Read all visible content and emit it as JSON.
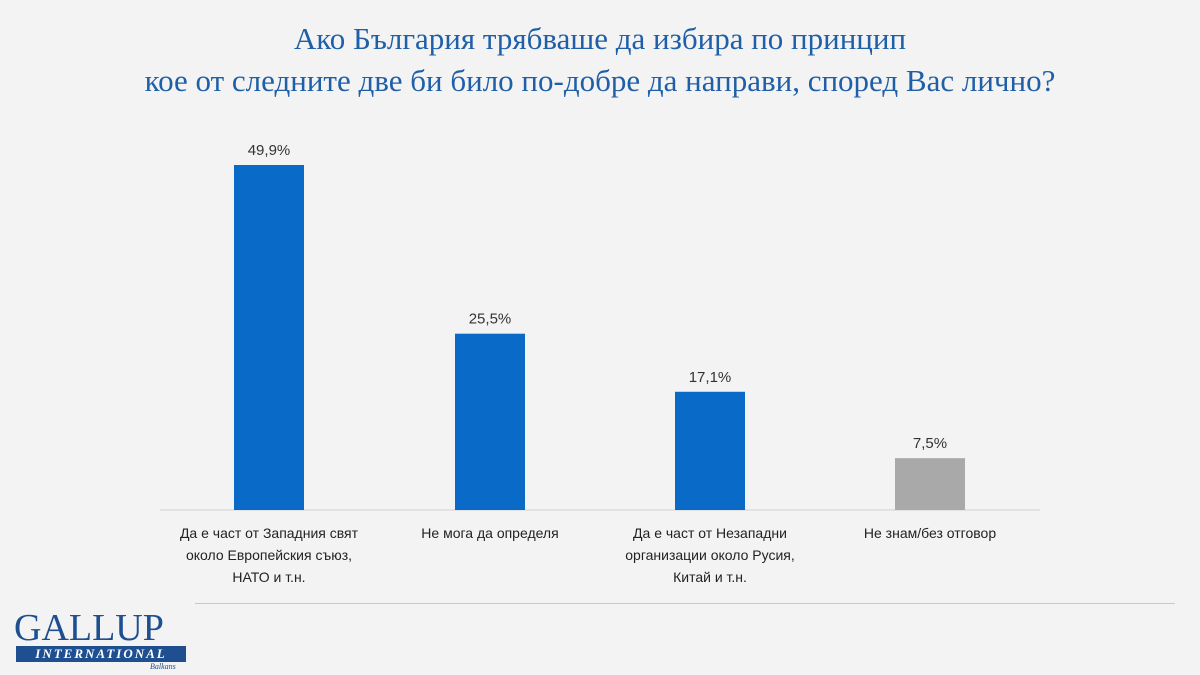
{
  "title_lines": [
    "Ако България трябваше да избира по принцип",
    "кое от следните две би било по-добре да направи, според Вас лично?"
  ],
  "chart_data": {
    "type": "bar",
    "title": "Ако България трябваше да избира по принцип кое от следните две би било по-добре да направи, според Вас лично?",
    "categories": [
      [
        "Да е част от Западния свят",
        "около Европейския съюз,",
        "НАТО и т.н."
      ],
      [
        "Не мога да определя"
      ],
      [
        "Да е част от Незападни",
        "организации около Русия,",
        "Китай и т.н."
      ],
      [
        "Не знам/без отговор"
      ]
    ],
    "values": [
      49.9,
      25.5,
      17.1,
      7.5
    ],
    "value_labels": [
      "49,9%",
      "25,5%",
      "17,1%",
      "7,5%"
    ],
    "colors": [
      "#0a6ac7",
      "#0a6ac7",
      "#0a6ac7",
      "#a9a9a9"
    ],
    "ylim": [
      0,
      52
    ],
    "grid": false,
    "xlabel": "",
    "ylabel": ""
  },
  "logo": {
    "word": "GALLUP",
    "band": "INTERNATIONAL",
    "sub": "Balkans"
  },
  "colors": {
    "title": "#1f5fa8",
    "bar": "#0a6ac7",
    "bar_muted": "#a9a9a9",
    "background": "#f3f3f3"
  }
}
